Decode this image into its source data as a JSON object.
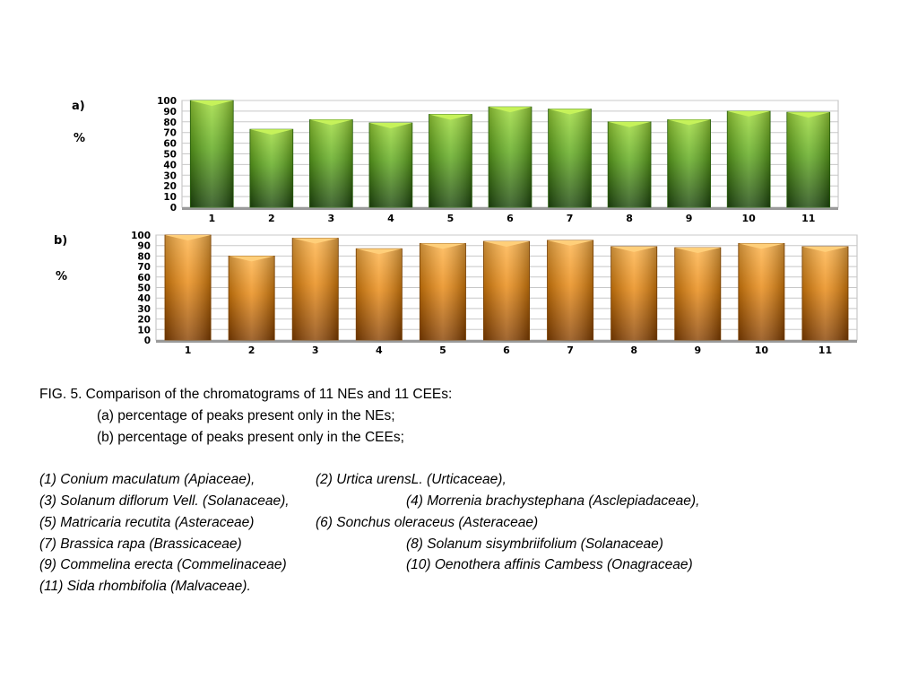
{
  "chart_data": [
    {
      "type": "bar",
      "panel_label": "a)",
      "ylabel": "%",
      "categories": [
        "1",
        "2",
        "3",
        "4",
        "5",
        "6",
        "7",
        "8",
        "9",
        "10",
        "11"
      ],
      "values": [
        100,
        73,
        82,
        79,
        87,
        94,
        92,
        80,
        82,
        90,
        89
      ],
      "ylim": [
        0,
        100
      ],
      "yticks": [
        "0",
        "10",
        "20",
        "30",
        "40",
        "50",
        "60",
        "70",
        "80",
        "90",
        "100"
      ],
      "grid": true,
      "color": "#5cb020"
    },
    {
      "type": "bar",
      "panel_label": "b)",
      "ylabel": "%",
      "categories": [
        "1",
        "2",
        "3",
        "4",
        "5",
        "6",
        "7",
        "8",
        "9",
        "10",
        "11"
      ],
      "values": [
        100,
        80,
        97,
        87,
        92,
        94,
        95,
        89,
        88,
        92,
        89
      ],
      "ylim": [
        0,
        100
      ],
      "yticks": [
        "0",
        "10",
        "20",
        "30",
        "40",
        "50",
        "60",
        "70",
        "80",
        "90",
        "100"
      ],
      "grid": true,
      "color": "#e8860c"
    }
  ],
  "caption": {
    "title": "FIG. 5. Comparison of the chromatograms of 11 NEs and 11 CEEs:",
    "line_a": "(a) percentage of peaks present only in the NEs;",
    "line_b": "(b) percentage of peaks present only in the CEEs;",
    "species": {
      "s1": "(1)   Conium maculatum  (Apiaceae),",
      "s2": "(2)   Urtica urensL. (Urticaceae),",
      "s3": "(3)   Solanum diflorum Vell. (Solanaceae),",
      "s4": "(4)   Morrenia brachystephana (Asclepiadaceae),",
      "s5": "(5)   Matricaria recutita (Asteraceae)",
      "s6": "(6)   Sonchus oleraceus  (Asteraceae)",
      "s7": "(7)   Brassica rapa (Brassicaceae)",
      "s8": "(8)   Solanum sisymbriifolium (Solanaceae)",
      "s9": "(9)   Commelina erecta (Commelinaceae)",
      "s10": "(10) Oenothera affinis Cambess (Onagraceae)",
      "s11": "(11)  Sida rhombifolia (Malvaceae)."
    }
  }
}
